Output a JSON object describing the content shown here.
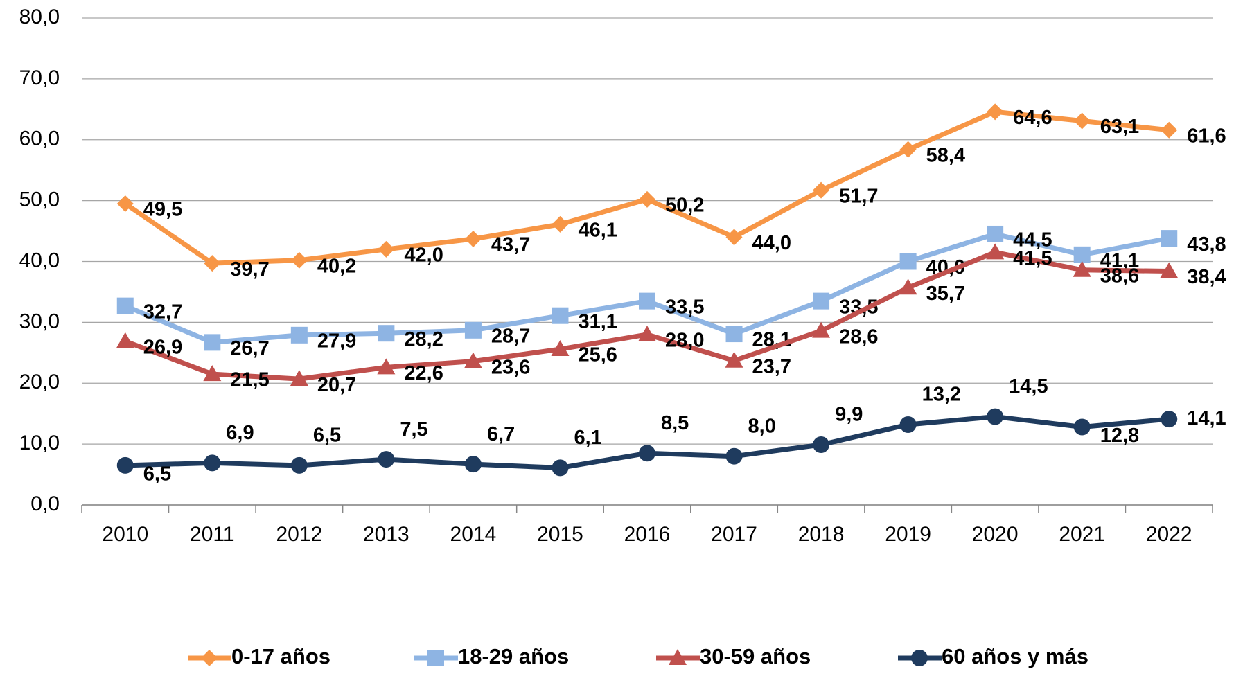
{
  "chart_data": {
    "type": "line",
    "categories": [
      "2010",
      "2011",
      "2012",
      "2013",
      "2014",
      "2015",
      "2016",
      "2017",
      "2018",
      "2019",
      "2020",
      "2021",
      "2022"
    ],
    "series": [
      {
        "name": "0-17 años",
        "color": "#f79646",
        "marker": "diamond",
        "values": [
          49.5,
          39.7,
          40.2,
          42.0,
          43.7,
          46.1,
          50.2,
          44.0,
          51.7,
          58.4,
          64.6,
          63.1,
          61.6
        ],
        "value_labels": [
          "49,5",
          "39,7",
          "40,2",
          "42,0",
          "43,7",
          "46,1",
          "50,2",
          "44,0",
          "51,7",
          "58,4",
          "64,6",
          "63,1",
          "61,6"
        ]
      },
      {
        "name": "18-29 años",
        "color": "#8eb4e3",
        "marker": "square",
        "values": [
          32.7,
          26.7,
          27.9,
          28.2,
          28.7,
          31.1,
          33.5,
          28.1,
          33.5,
          40.0,
          44.5,
          41.1,
          43.8
        ],
        "value_labels": [
          "32,7",
          "26,7",
          "27,9",
          "28,2",
          "28,7",
          "31,1",
          "33,5",
          "28,1",
          "33,5",
          "40,0",
          "44,5",
          "41,1",
          "43,8"
        ]
      },
      {
        "name": "30-59 años",
        "color": "#c0504d",
        "marker": "triangle",
        "values": [
          26.9,
          21.5,
          20.7,
          22.6,
          23.6,
          25.6,
          28.0,
          23.7,
          28.6,
          35.7,
          41.5,
          38.6,
          38.4
        ],
        "value_labels": [
          "26,9",
          "21,5",
          "20,7",
          "22,6",
          "23,6",
          "25,6",
          "28,0",
          "23,7",
          "28,6",
          "35,7",
          "41,5",
          "38,6",
          "38,4"
        ]
      },
      {
        "name": "60 años y más",
        "color": "#1f3b5e",
        "marker": "circle",
        "values": [
          6.5,
          6.9,
          6.5,
          7.5,
          6.7,
          6.1,
          8.5,
          8.0,
          9.9,
          13.2,
          14.5,
          12.8,
          14.1
        ],
        "value_labels": [
          "6,5",
          "6,9",
          "6,5",
          "7,5",
          "6,7",
          "6,1",
          "8,5",
          "8,0",
          "9,9",
          "13,2",
          "14,5",
          "12,8",
          "14,1"
        ]
      }
    ],
    "ylim": [
      0,
      80
    ],
    "yticks": [
      {
        "value": 0,
        "label": "0,0"
      },
      {
        "value": 10,
        "label": "10,0"
      },
      {
        "value": 20,
        "label": "20,0"
      },
      {
        "value": 30,
        "label": "30,0"
      },
      {
        "value": 40,
        "label": "40,0"
      },
      {
        "value": 50,
        "label": "50,0"
      },
      {
        "value": 60,
        "label": "60,0"
      },
      {
        "value": 70,
        "label": "70,0"
      },
      {
        "value": 80,
        "label": "80,0"
      }
    ],
    "grid": true,
    "legend": "bottom"
  }
}
